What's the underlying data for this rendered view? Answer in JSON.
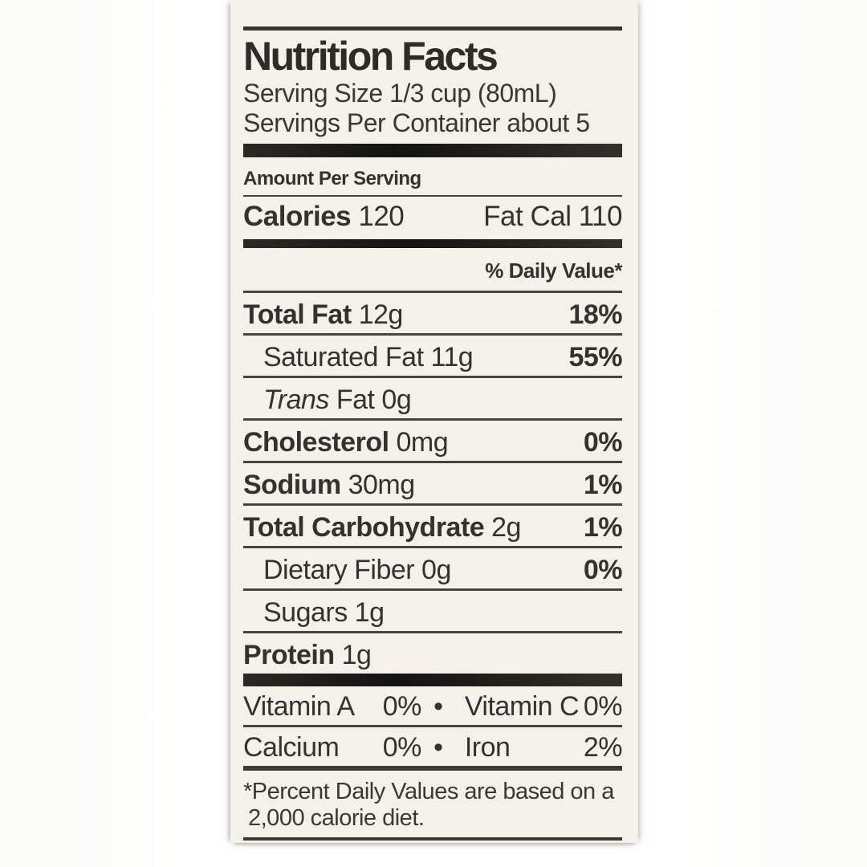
{
  "label": {
    "title": "Nutrition Facts",
    "serving_size": "Serving Size 1/3 cup (80mL)",
    "servings_per_container": "Servings Per Container about 5",
    "amount_per_serving": "Amount Per Serving",
    "calories": {
      "label": "Calories",
      "value": " 120",
      "fat_cal": "Fat Cal 110"
    },
    "daily_value_header": "% Daily Value*",
    "nutrients": [
      {
        "bold": "Total Fat",
        "rest": " 12g",
        "pct": "18%"
      },
      {
        "plain": "Saturated Fat 11g",
        "pct": "55%"
      },
      {
        "italic": "Trans",
        "rest": " Fat 0g",
        "pct": ""
      },
      {
        "bold": "Cholesterol",
        "rest": " 0mg",
        "pct": "0%"
      },
      {
        "bold": "Sodium",
        "rest": " 30mg",
        "pct": "1%"
      },
      {
        "bold": "Total Carbohydrate",
        "rest": " 2g",
        "pct": "1%"
      },
      {
        "plain": "Dietary Fiber 0g",
        "pct": "0%"
      },
      {
        "plain": "Sugars 1g",
        "pct": ""
      },
      {
        "bold": "Protein",
        "rest": " 1g",
        "pct": ""
      }
    ],
    "vitamins": [
      {
        "left_label": "Vitamin A",
        "left_pct": "0%",
        "bullet": "•",
        "right_label": "Vitamin C",
        "right_pct": "0%"
      },
      {
        "left_label": "Calcium",
        "left_pct": "0%",
        "bullet": "•",
        "right_label": "Iron",
        "right_pct": "2%"
      }
    ],
    "footnote_line1": "*Percent Daily Values are based on a",
    "footnote_line2": "2,000 calorie diet."
  }
}
